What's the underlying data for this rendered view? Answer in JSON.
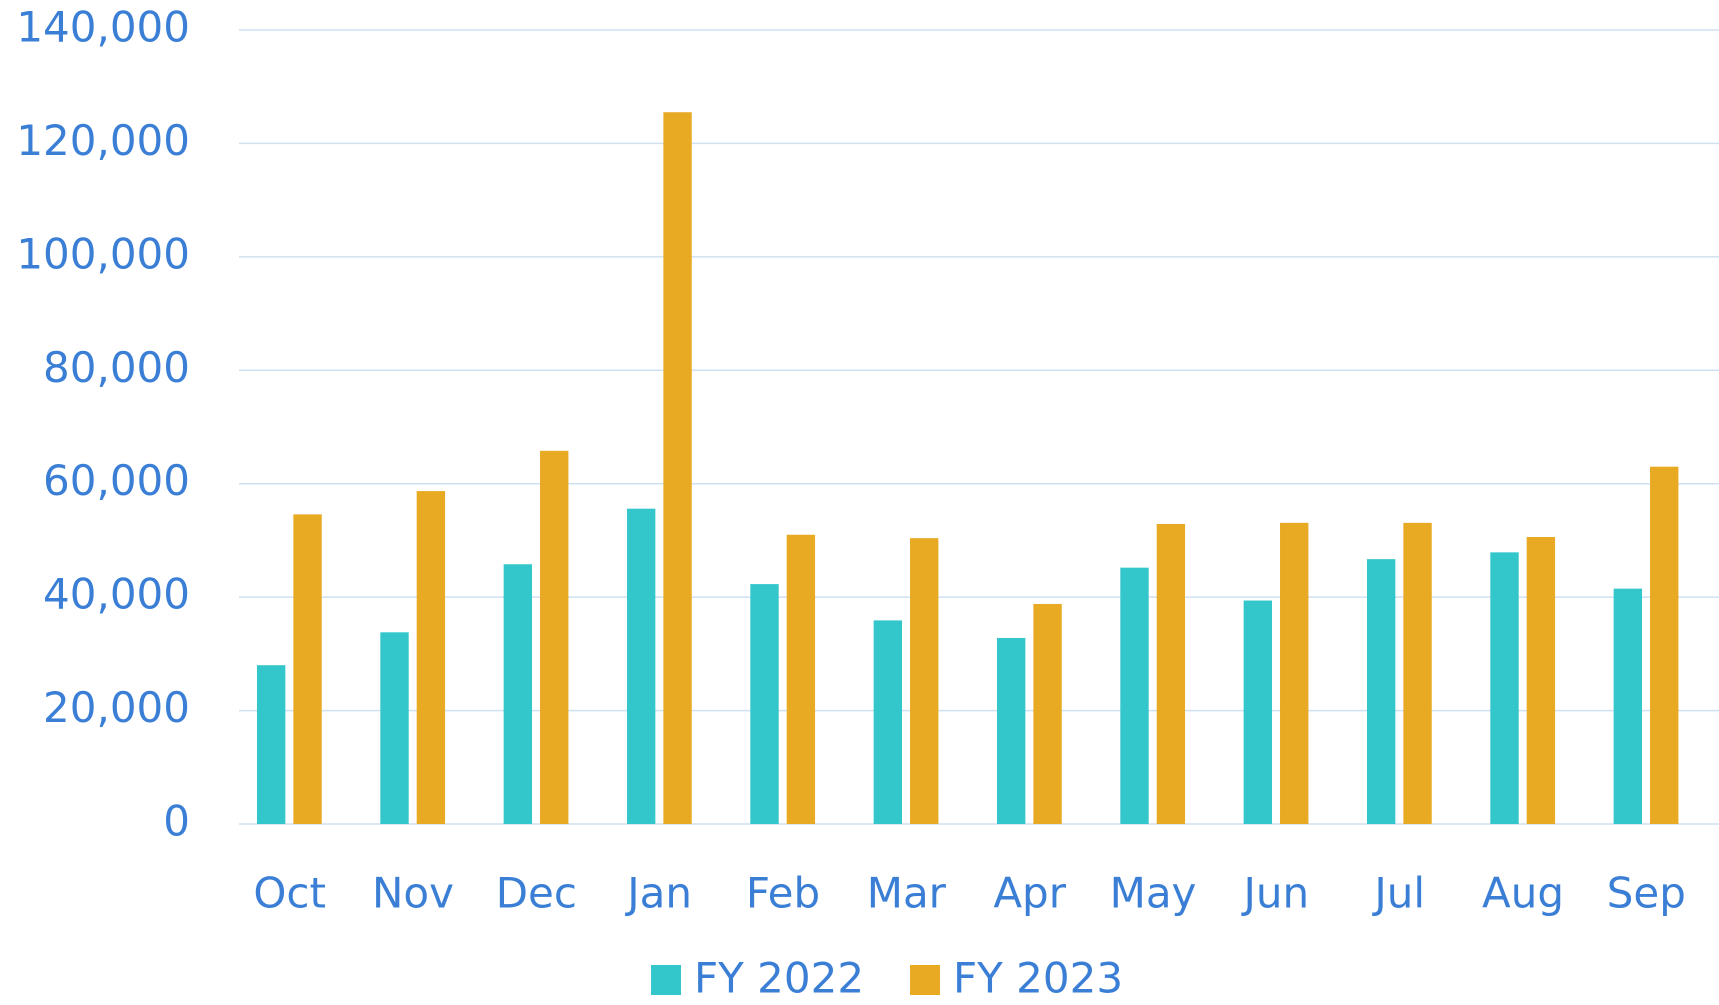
{
  "chart_data": {
    "type": "bar",
    "categories": [
      "Oct",
      "Nov",
      "Dec",
      "Jan",
      "Feb",
      "Mar",
      "Apr",
      "May",
      "Jun",
      "Jul",
      "Aug",
      "Sep"
    ],
    "series": [
      {
        "name": "FY 2022",
        "color": "#33c7cc",
        "values": [
          28000,
          33800,
          45800,
          55600,
          42300,
          35900,
          32800,
          45200,
          39400,
          46700,
          47900,
          41500
        ]
      },
      {
        "name": "FY 2023",
        "color": "#e8a923",
        "values": [
          54600,
          58700,
          65800,
          125500,
          51000,
          50400,
          38800,
          52900,
          53100,
          53100,
          50600,
          63000
        ]
      }
    ],
    "ylim": [
      0,
      140000
    ],
    "yticks": [
      0,
      {
        "value": 20000,
        "label": "20,000"
      },
      {
        "value": 40000,
        "label": "40,000"
      },
      {
        "value": 60000,
        "label": "60,000"
      },
      {
        "value": 80000,
        "label": "80,000"
      },
      {
        "value": 100000,
        "label": "100,000"
      },
      {
        "value": 120000,
        "label": "120,000"
      },
      {
        "value": 140000,
        "label": "140,000"
      }
    ],
    "grid": true,
    "legend": "bottom"
  }
}
